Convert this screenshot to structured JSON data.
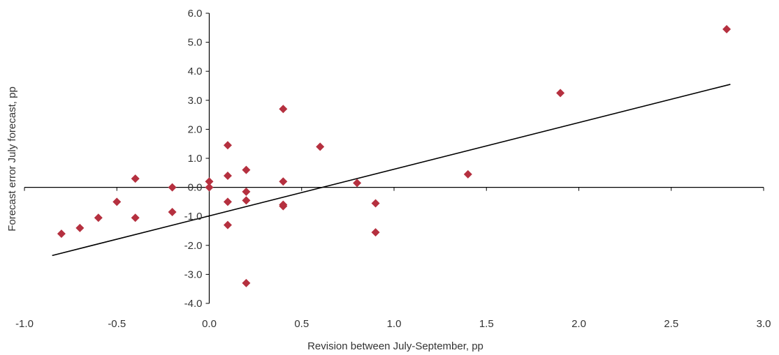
{
  "chart_data": {
    "type": "scatter",
    "xlabel": "Revision between July-September, pp",
    "ylabel": "Forecast error July forecast, pp",
    "xlim": [
      -1.0,
      3.0
    ],
    "ylim": [
      -4.0,
      6.0
    ],
    "x_ticks": [
      "-1.0",
      "-0.5",
      "0.0",
      "0.5",
      "1.0",
      "1.5",
      "2.0",
      "2.5",
      "3.0"
    ],
    "y_ticks": [
      "6.0",
      "5.0",
      "4.0",
      "3.0",
      "2.0",
      "1.0",
      "0.0",
      "-1.0",
      "-2.0",
      "-3.0",
      "-4.0"
    ],
    "grid": false,
    "marker_color": "#b5303f",
    "points": [
      {
        "x": -0.8,
        "y": -1.6
      },
      {
        "x": -0.7,
        "y": -1.4
      },
      {
        "x": -0.6,
        "y": -1.05
      },
      {
        "x": -0.5,
        "y": -0.5
      },
      {
        "x": -0.4,
        "y": 0.3
      },
      {
        "x": -0.4,
        "y": -1.05
      },
      {
        "x": -0.2,
        "y": 0.0
      },
      {
        "x": -0.2,
        "y": -0.85
      },
      {
        "x": 0.0,
        "y": 0.2
      },
      {
        "x": 0.0,
        "y": 0.0
      },
      {
        "x": 0.1,
        "y": 1.45
      },
      {
        "x": 0.1,
        "y": 0.4
      },
      {
        "x": 0.1,
        "y": -0.5
      },
      {
        "x": 0.1,
        "y": -1.3
      },
      {
        "x": 0.2,
        "y": 0.6
      },
      {
        "x": 0.2,
        "y": -0.15
      },
      {
        "x": 0.2,
        "y": -0.45
      },
      {
        "x": 0.2,
        "y": -3.3
      },
      {
        "x": 0.4,
        "y": 2.7
      },
      {
        "x": 0.4,
        "y": 0.2
      },
      {
        "x": 0.4,
        "y": -0.6
      },
      {
        "x": 0.4,
        "y": -0.65
      },
      {
        "x": 0.6,
        "y": 1.4
      },
      {
        "x": 0.8,
        "y": 0.15
      },
      {
        "x": 0.9,
        "y": -0.55
      },
      {
        "x": 0.9,
        "y": -1.55
      },
      {
        "x": 1.4,
        "y": 0.45
      },
      {
        "x": 1.9,
        "y": 3.25
      },
      {
        "x": 2.8,
        "y": 5.45
      }
    ],
    "trendline": {
      "x": [
        -0.85,
        2.82
      ],
      "y": [
        -2.35,
        3.55
      ],
      "color": "#000000"
    }
  }
}
